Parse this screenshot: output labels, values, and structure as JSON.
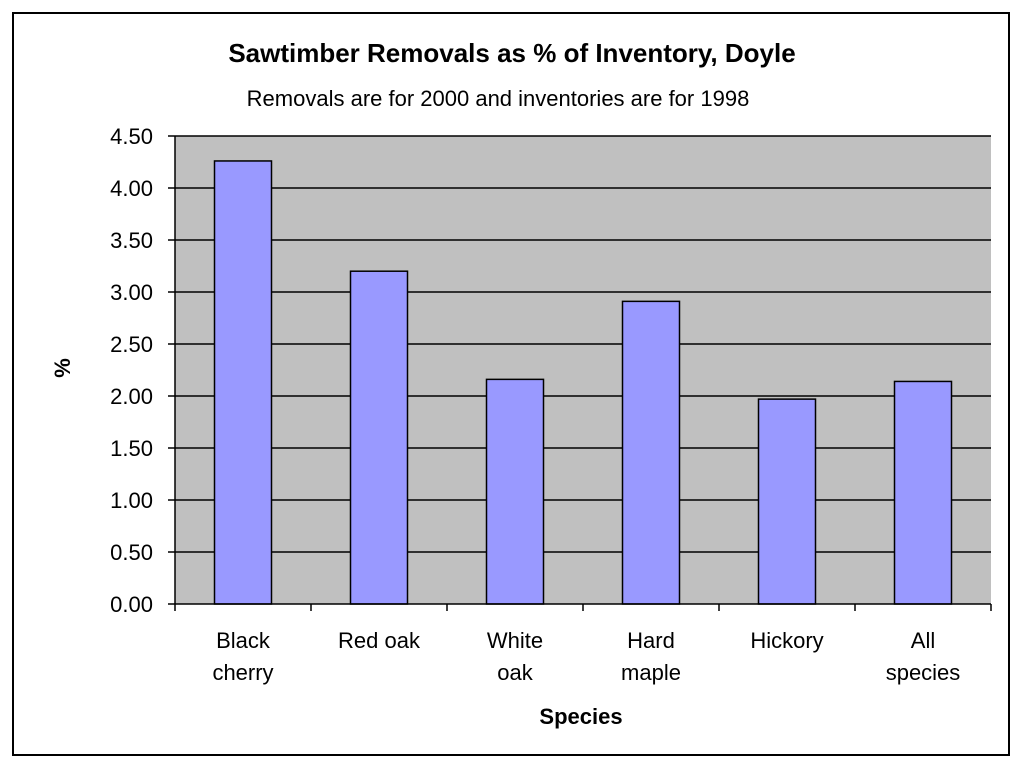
{
  "chart_data": {
    "type": "bar",
    "title": "Sawtimber Removals as % of Inventory,  Doyle",
    "subtitle": "Removals are for 2000 and inventories are for 1998",
    "xlabel": "Species",
    "ylabel": "%",
    "categories": [
      [
        "Black",
        "cherry"
      ],
      [
        "Red oak"
      ],
      [
        "White",
        "oak"
      ],
      [
        "Hard",
        "maple"
      ],
      [
        "Hickory"
      ],
      [
        "All",
        "species"
      ]
    ],
    "values": [
      4.26,
      3.2,
      2.16,
      2.91,
      1.97,
      2.14
    ],
    "ylim": [
      0,
      4.5
    ],
    "yticks": [
      "0.00",
      "0.50",
      "1.00",
      "1.50",
      "2.00",
      "2.50",
      "3.00",
      "3.50",
      "4.00",
      "4.50"
    ],
    "grid": true,
    "colors": {
      "bar": "#9999ff",
      "plot_bg": "#c0c0c0",
      "grid": "#000000"
    }
  }
}
